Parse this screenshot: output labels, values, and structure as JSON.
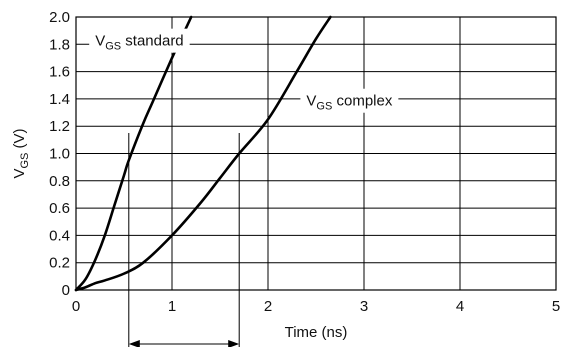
{
  "chart_data": {
    "type": "line",
    "xlabel": "Time (ns)",
    "ylabel": {
      "main": "V",
      "sub": "GS",
      "unit": " (V)"
    },
    "xlim": [
      0,
      5
    ],
    "ylim": [
      0,
      2.0
    ],
    "x_ticks": [
      0,
      1,
      2,
      3,
      4,
      5
    ],
    "x_tick_labels": [
      "0",
      "1",
      "2",
      "3",
      "4",
      "5"
    ],
    "y_ticks": [
      0,
      0.2,
      0.4,
      0.6,
      0.8,
      1.0,
      1.2,
      1.4,
      1.6,
      1.8,
      2.0
    ],
    "y_tick_labels": [
      "0",
      "0.2",
      "0.4",
      "0.6",
      "0.8",
      "1.0",
      "1.2",
      "1.4",
      "1.6",
      "1.8",
      "2.0"
    ],
    "grid": true,
    "series": [
      {
        "label_main": "V",
        "label_sub": "GS",
        "label_rest": " standard",
        "label_anchor": [
          0.2,
          1.79
        ],
        "points": [
          [
            0,
            0
          ],
          [
            0.1,
            0.08
          ],
          [
            0.2,
            0.22
          ],
          [
            0.3,
            0.4
          ],
          [
            0.4,
            0.62
          ],
          [
            0.5,
            0.84
          ],
          [
            0.55,
            0.95
          ],
          [
            0.7,
            1.22
          ],
          [
            0.8,
            1.38
          ],
          [
            1.0,
            1.7
          ],
          [
            1.1,
            1.85
          ],
          [
            1.2,
            2.0
          ]
        ]
      },
      {
        "label_main": "V",
        "label_sub": "GS",
        "label_rest": " complex",
        "label_anchor": [
          2.4,
          1.35
        ],
        "points": [
          [
            0,
            0
          ],
          [
            0.1,
            0.02
          ],
          [
            0.2,
            0.05
          ],
          [
            0.3,
            0.07
          ],
          [
            0.5,
            0.12
          ],
          [
            0.7,
            0.2
          ],
          [
            1.0,
            0.4
          ],
          [
            1.3,
            0.64
          ],
          [
            1.5,
            0.82
          ],
          [
            1.7,
            1.0
          ],
          [
            2.0,
            1.25
          ],
          [
            2.3,
            1.6
          ],
          [
            2.5,
            1.84
          ],
          [
            2.65,
            2.0
          ]
        ]
      }
    ],
    "annotation": {
      "x_start": 0.55,
      "x_end": 1.7,
      "marker_top": 1.15
    }
  }
}
